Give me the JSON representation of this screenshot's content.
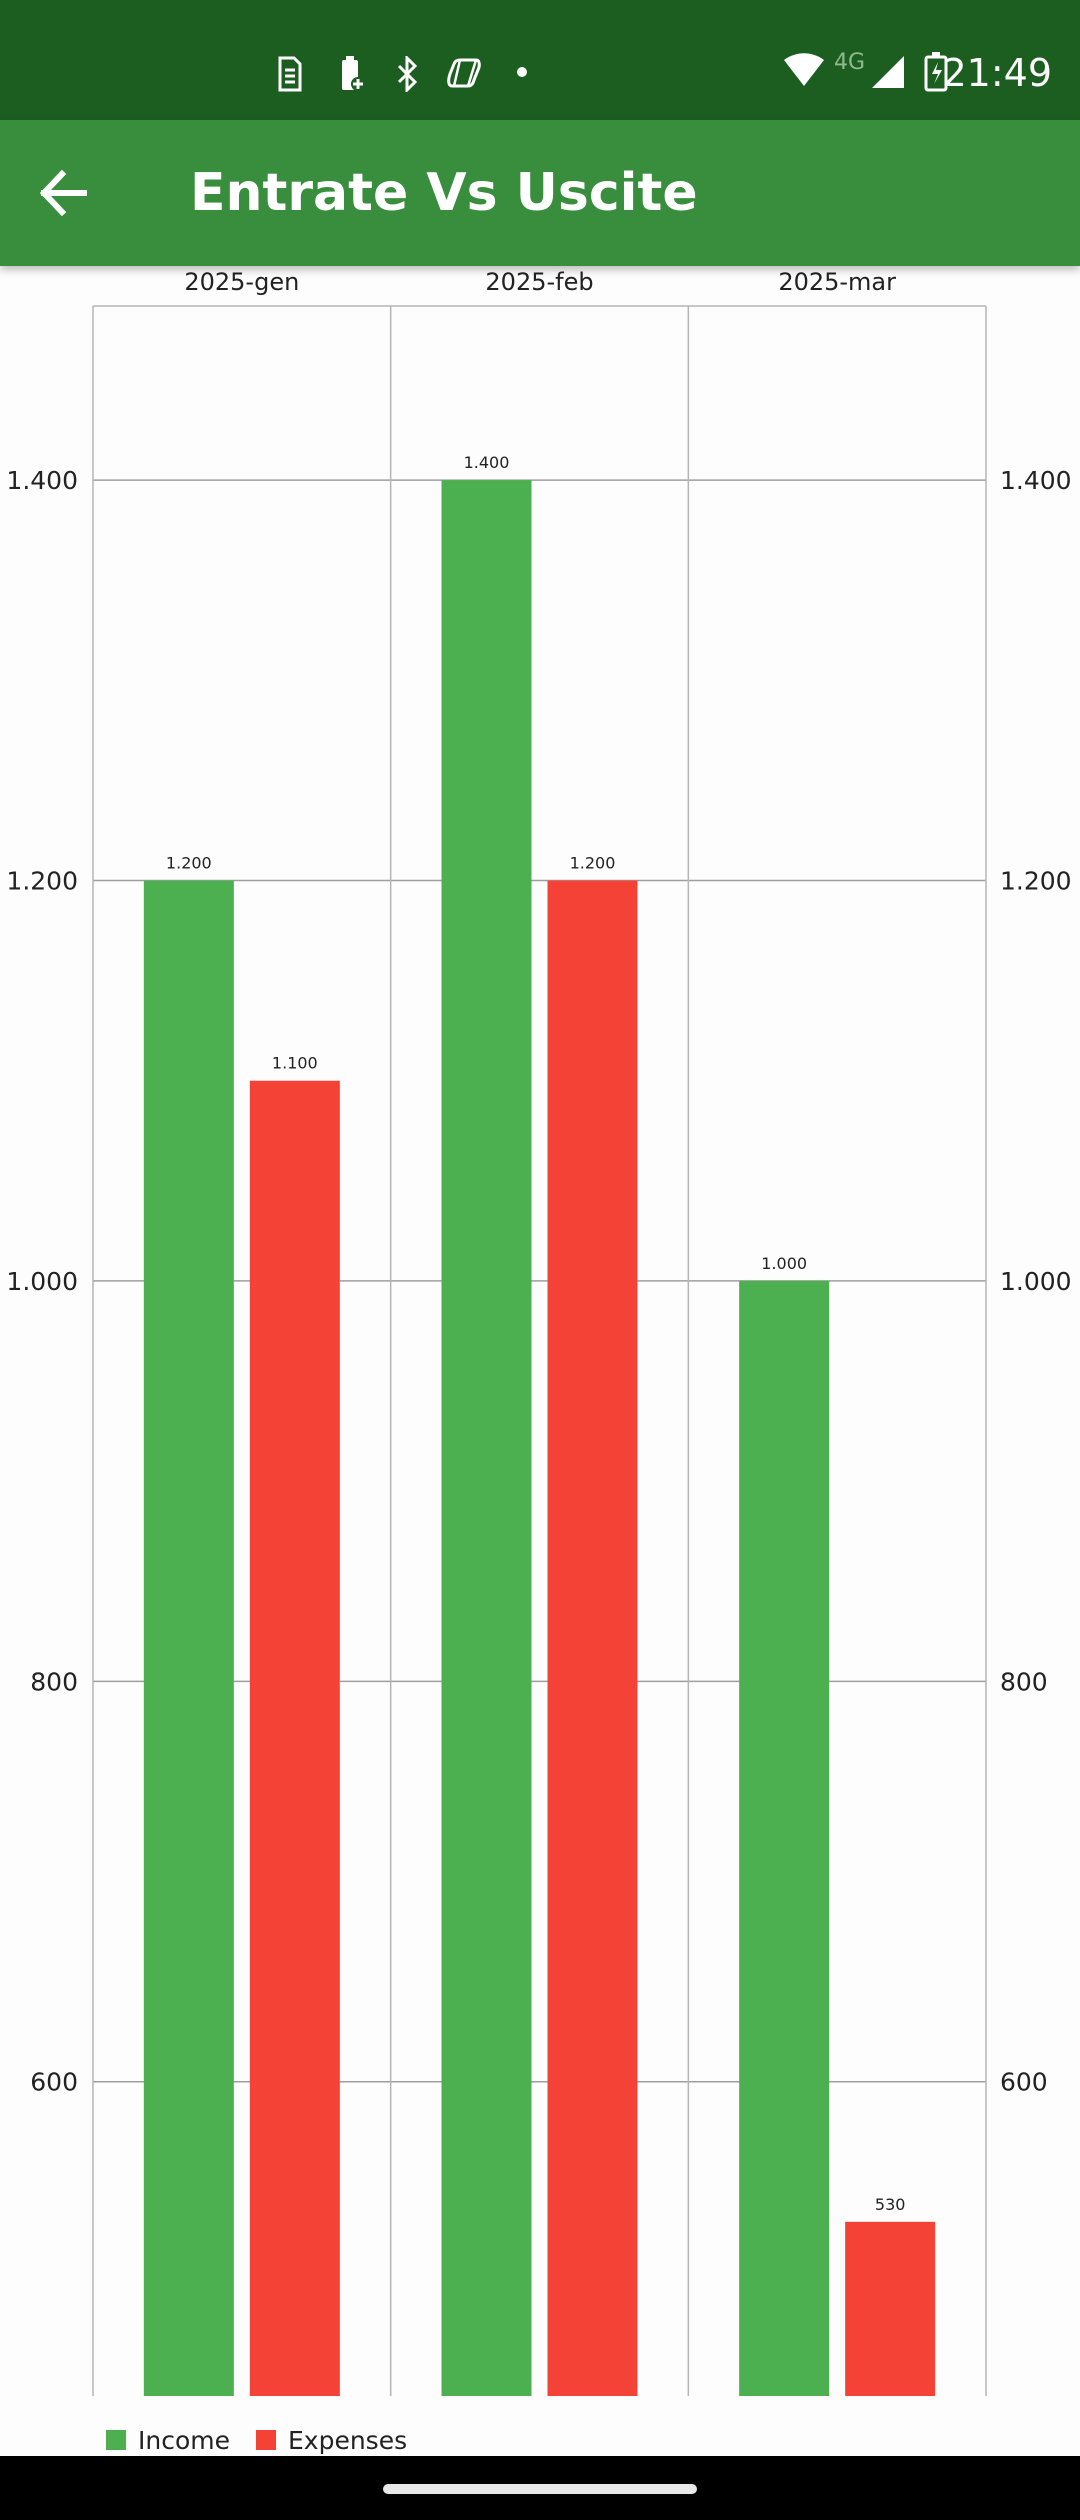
{
  "status_bar": {
    "time": "21:49",
    "network_label": "4G",
    "icons": [
      "sim-card-icon",
      "battery-saver-icon",
      "bluetooth-icon",
      "copilot-icon",
      "notification-dot-icon",
      "wifi-icon",
      "cell-signal-icon",
      "battery-charging-icon"
    ]
  },
  "app_bar": {
    "title": "Entrate Vs Uscite",
    "back_icon": "arrow-back-icon"
  },
  "colors": {
    "status_bar": "#1b5e20",
    "app_bar": "#388e3c",
    "income": "#4caf50",
    "expenses": "#f44336"
  },
  "chart_data": {
    "type": "bar",
    "categories": [
      "2025-gen",
      "2025-feb",
      "2025-mar"
    ],
    "series": [
      {
        "name": "Income",
        "values": [
          1200,
          1400,
          1000
        ],
        "labels": [
          "1.200",
          "1.400",
          "1.000"
        ],
        "color": "#4caf50"
      },
      {
        "name": "Expenses",
        "values": [
          1100,
          1200,
          530
        ],
        "labels": [
          "1.100",
          "1.200",
          "530"
        ],
        "color": "#f44336"
      }
    ],
    "y_ticks": [
      600,
      800,
      1000,
      1200,
      1400
    ],
    "y_tick_labels": [
      "600",
      "800",
      "1.000",
      "1.200",
      "1.400"
    ],
    "ylim": [
      443,
      1487
    ],
    "y_axes": [
      "left",
      "right"
    ],
    "x_axis_position": "top",
    "grid": true,
    "legend": "bottom-left"
  }
}
